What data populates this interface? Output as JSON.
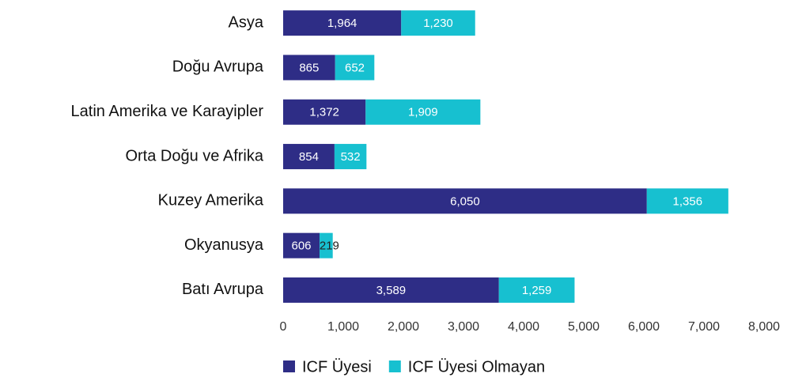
{
  "chart_data": {
    "type": "stacked_barh",
    "categories": [
      "Asya",
      "Doğu Avrupa",
      "Latin Amerika ve Karayipler",
      "Orta Doğu ve Afrika",
      "Kuzey Amerika",
      "Okyanusya",
      "Batı Avrupa"
    ],
    "series": [
      {
        "name": "ICF Üyesi",
        "color": "#2e2d86",
        "values": [
          1964,
          865,
          1372,
          854,
          6050,
          606,
          3589
        ],
        "value_labels": [
          "1,964",
          "865",
          "1,372",
          "854",
          "6,050",
          "606",
          "3,589"
        ]
      },
      {
        "name": "ICF Üyesi Olmayan",
        "color": "#17c0d0",
        "values": [
          1230,
          652,
          1909,
          532,
          1356,
          219,
          1259
        ],
        "value_labels": [
          "1,230",
          "652",
          "1,909",
          "532",
          "1,356",
          "219",
          "1,259"
        ]
      }
    ],
    "xlim": [
      0,
      8000
    ],
    "xticks": [
      0,
      {
        "value": 1000,
        "label": "1,000"
      },
      {
        "value": 2000,
        "label": "2,000"
      },
      {
        "value": 3000,
        "label": "3,000"
      },
      {
        "value": 4000,
        "label": "4,000"
      },
      {
        "value": 5000,
        "label": "5,000"
      },
      {
        "value": 6000,
        "label": "6,000"
      },
      {
        "value": 7000,
        "label": "7,000"
      },
      {
        "value": 8000,
        "label": "8,000"
      }
    ],
    "grid": false,
    "legend": "bottom"
  }
}
